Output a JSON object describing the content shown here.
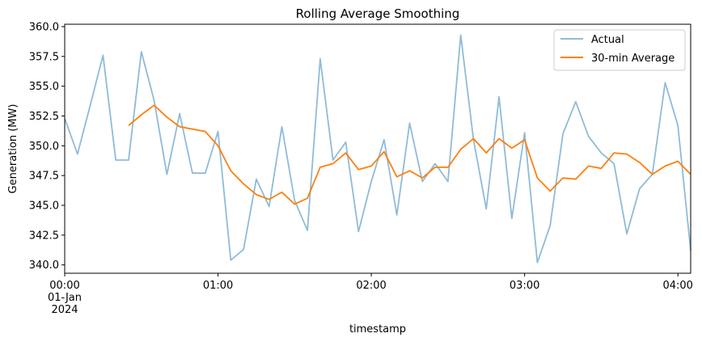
{
  "chart_data": {
    "type": "line",
    "title": "Rolling Average Smoothing",
    "xlabel": "timestamp",
    "ylabel": "Generation (MW)",
    "x_start": "2024-01-01 00:00",
    "x_interval": "5min",
    "x_ticks": [
      {
        "time": "00:00",
        "lines": [
          "00:00",
          "01-Jan",
          "2024"
        ]
      },
      {
        "time": "01:00",
        "lines": [
          "01:00"
        ]
      },
      {
        "time": "02:00",
        "lines": [
          "02:00"
        ]
      },
      {
        "time": "03:00",
        "lines": [
          "03:00"
        ]
      },
      {
        "time": "04:00",
        "lines": [
          "04:00"
        ]
      }
    ],
    "xlim": [
      "2024-01-01 00:00",
      "2024-01-01 04:05"
    ],
    "ylim": [
      339.3,
      360.2
    ],
    "y_ticks": [
      340.0,
      342.5,
      345.0,
      347.5,
      350.0,
      352.5,
      355.0,
      357.5,
      360.0
    ],
    "y_tick_labels": [
      "340.0",
      "342.5",
      "345.0",
      "347.5",
      "350.0",
      "352.5",
      "355.0",
      "357.5",
      "360.0"
    ],
    "grid": false,
    "legend_position": "top-right",
    "series": [
      {
        "name": "Actual",
        "color": "#1f77b4",
        "opacity": 0.5,
        "values": [
          352.3,
          349.3,
          353.4,
          357.6,
          348.8,
          348.8,
          357.9,
          353.8,
          347.6,
          352.7,
          347.7,
          347.7,
          351.2,
          340.4,
          341.3,
          347.2,
          344.9,
          351.6,
          345.4,
          342.9,
          357.3,
          348.8,
          350.3,
          342.8,
          347.0,
          350.5,
          344.2,
          351.9,
          347.0,
          348.5,
          347.0,
          359.3,
          350.5,
          344.7,
          354.1,
          343.9,
          351.1,
          340.2,
          343.3,
          351.0,
          353.7,
          350.8,
          349.4,
          348.5,
          342.6,
          346.4,
          347.6,
          355.3,
          351.7,
          341.2
        ]
      },
      {
        "name": "30-min Average",
        "color": "#ff7f0e",
        "opacity": 1,
        "values": [
          null,
          null,
          null,
          null,
          null,
          351.7,
          352.6,
          353.4,
          352.4,
          351.6,
          351.4,
          351.2,
          350.0,
          347.9,
          346.8,
          345.9,
          345.5,
          346.1,
          345.1,
          345.6,
          348.2,
          348.5,
          349.4,
          348.0,
          348.3,
          349.5,
          347.4,
          347.9,
          347.3,
          348.2,
          348.2,
          349.7,
          350.6,
          349.4,
          350.6,
          349.8,
          350.5,
          347.3,
          346.2,
          347.3,
          347.2,
          348.3,
          348.1,
          349.4,
          349.3,
          348.6,
          347.6,
          348.3,
          348.7,
          347.6
        ]
      }
    ]
  }
}
